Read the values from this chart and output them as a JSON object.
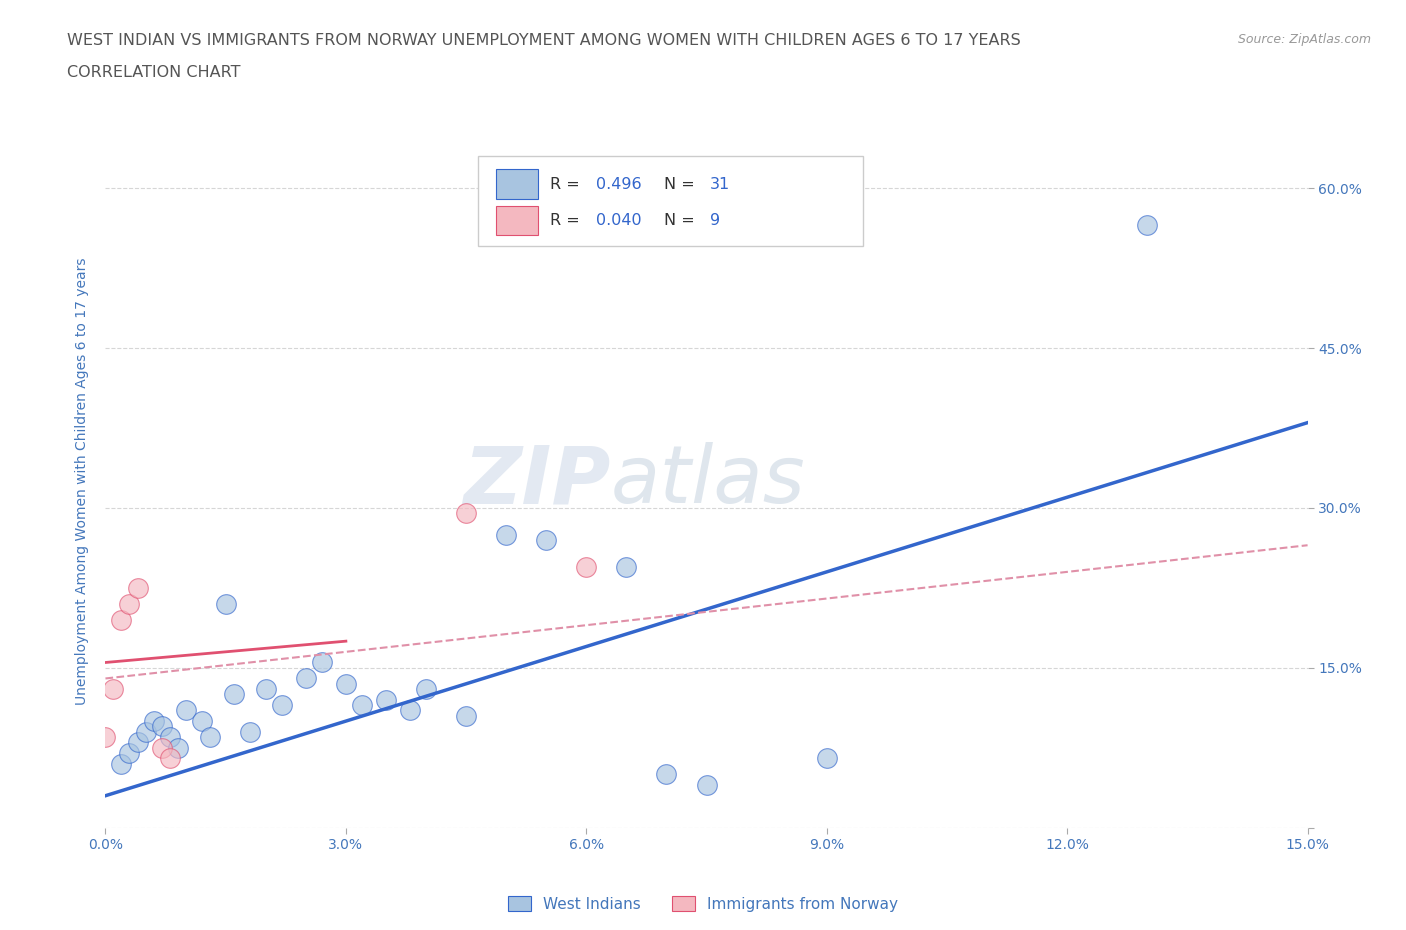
{
  "title_line1": "WEST INDIAN VS IMMIGRANTS FROM NORWAY UNEMPLOYMENT AMONG WOMEN WITH CHILDREN AGES 6 TO 17 YEARS",
  "title_line2": "CORRELATION CHART",
  "source": "Source: ZipAtlas.com",
  "ylabel": "Unemployment Among Women with Children Ages 6 to 17 years",
  "xlim": [
    0.0,
    0.15
  ],
  "ylim": [
    0.0,
    0.65
  ],
  "xticks": [
    0.0,
    0.03,
    0.06,
    0.09,
    0.12,
    0.15
  ],
  "yticks": [
    0.0,
    0.15,
    0.3,
    0.45,
    0.6
  ],
  "blue_scatter_x": [
    0.002,
    0.003,
    0.004,
    0.005,
    0.006,
    0.007,
    0.008,
    0.009,
    0.01,
    0.012,
    0.013,
    0.015,
    0.016,
    0.018,
    0.02,
    0.022,
    0.025,
    0.027,
    0.03,
    0.032,
    0.035,
    0.038,
    0.04,
    0.045,
    0.05,
    0.055,
    0.065,
    0.07,
    0.075,
    0.09,
    0.13
  ],
  "blue_scatter_y": [
    0.06,
    0.07,
    0.08,
    0.09,
    0.1,
    0.095,
    0.085,
    0.075,
    0.11,
    0.1,
    0.085,
    0.21,
    0.125,
    0.09,
    0.13,
    0.115,
    0.14,
    0.155,
    0.135,
    0.115,
    0.12,
    0.11,
    0.13,
    0.105,
    0.275,
    0.27,
    0.245,
    0.05,
    0.04,
    0.065,
    0.565
  ],
  "pink_scatter_x": [
    0.0,
    0.001,
    0.002,
    0.003,
    0.004,
    0.007,
    0.008,
    0.045,
    0.06
  ],
  "pink_scatter_y": [
    0.085,
    0.13,
    0.195,
    0.21,
    0.225,
    0.075,
    0.065,
    0.295,
    0.245
  ],
  "blue_line_x": [
    0.0,
    0.15
  ],
  "blue_line_y": [
    0.03,
    0.38
  ],
  "pink_solid_line_x": [
    0.0,
    0.03
  ],
  "pink_solid_line_y": [
    0.155,
    0.175
  ],
  "pink_dashed_line_x": [
    0.0,
    0.15
  ],
  "pink_dashed_line_y": [
    0.14,
    0.265
  ],
  "blue_color": "#a8c4e0",
  "pink_color": "#f4b8c0",
  "blue_line_color": "#3366cc",
  "pink_solid_line_color": "#e05070",
  "pink_dashed_line_color": "#e090a8",
  "R_blue": "0.496",
  "N_blue": "31",
  "R_pink": "0.040",
  "N_pink": "9",
  "legend_label_blue": "West Indians",
  "legend_label_pink": "Immigrants from Norway",
  "watermark_zip": "ZIP",
  "watermark_atlas": "atlas",
  "background_color": "#ffffff",
  "title_color": "#555555",
  "axis_label_color": "#4477bb",
  "tick_color": "#4477bb",
  "grid_color": "#cccccc",
  "legend_R_color": "#333333",
  "legend_N_color": "#333333",
  "legend_val_color": "#3366cc"
}
